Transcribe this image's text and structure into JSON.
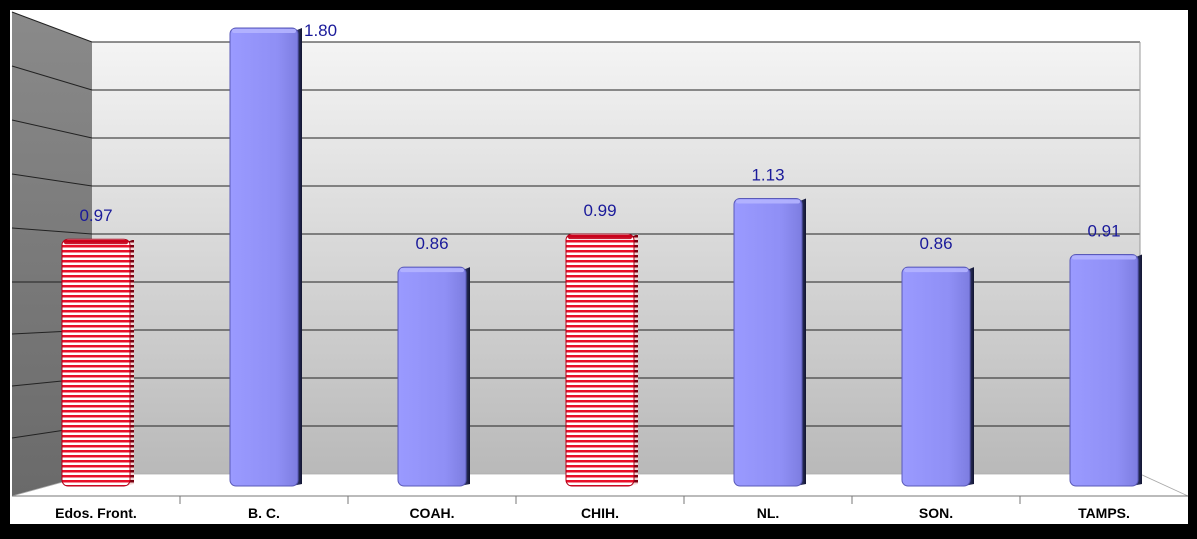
{
  "chart_data": {
    "type": "bar",
    "categories": [
      "Edos. Front.",
      "B. C.",
      "COAH.",
      "CHIH.",
      "NL.",
      "SON.",
      "TAMPS."
    ],
    "values": [
      0.97,
      1.8,
      0.86,
      0.99,
      1.13,
      0.86,
      0.91
    ],
    "value_labels": [
      "0.97",
      "1.80",
      "0.86",
      "0.99",
      "1.13",
      "0.86",
      "0.91"
    ],
    "highlighted": [
      true,
      false,
      false,
      true,
      false,
      false,
      false
    ],
    "ylim": [
      0,
      1.8
    ],
    "grid": true,
    "title": "",
    "xlabel": "",
    "ylabel": "",
    "colors": {
      "normal_bar": "#9999ff",
      "normal_bar_dark": "#2a2f5e",
      "highlight_bar": "#e8102a",
      "highlight_bar_dark": "#7a0010",
      "value_label": "#1a1a9a",
      "frame": "#000000"
    }
  }
}
